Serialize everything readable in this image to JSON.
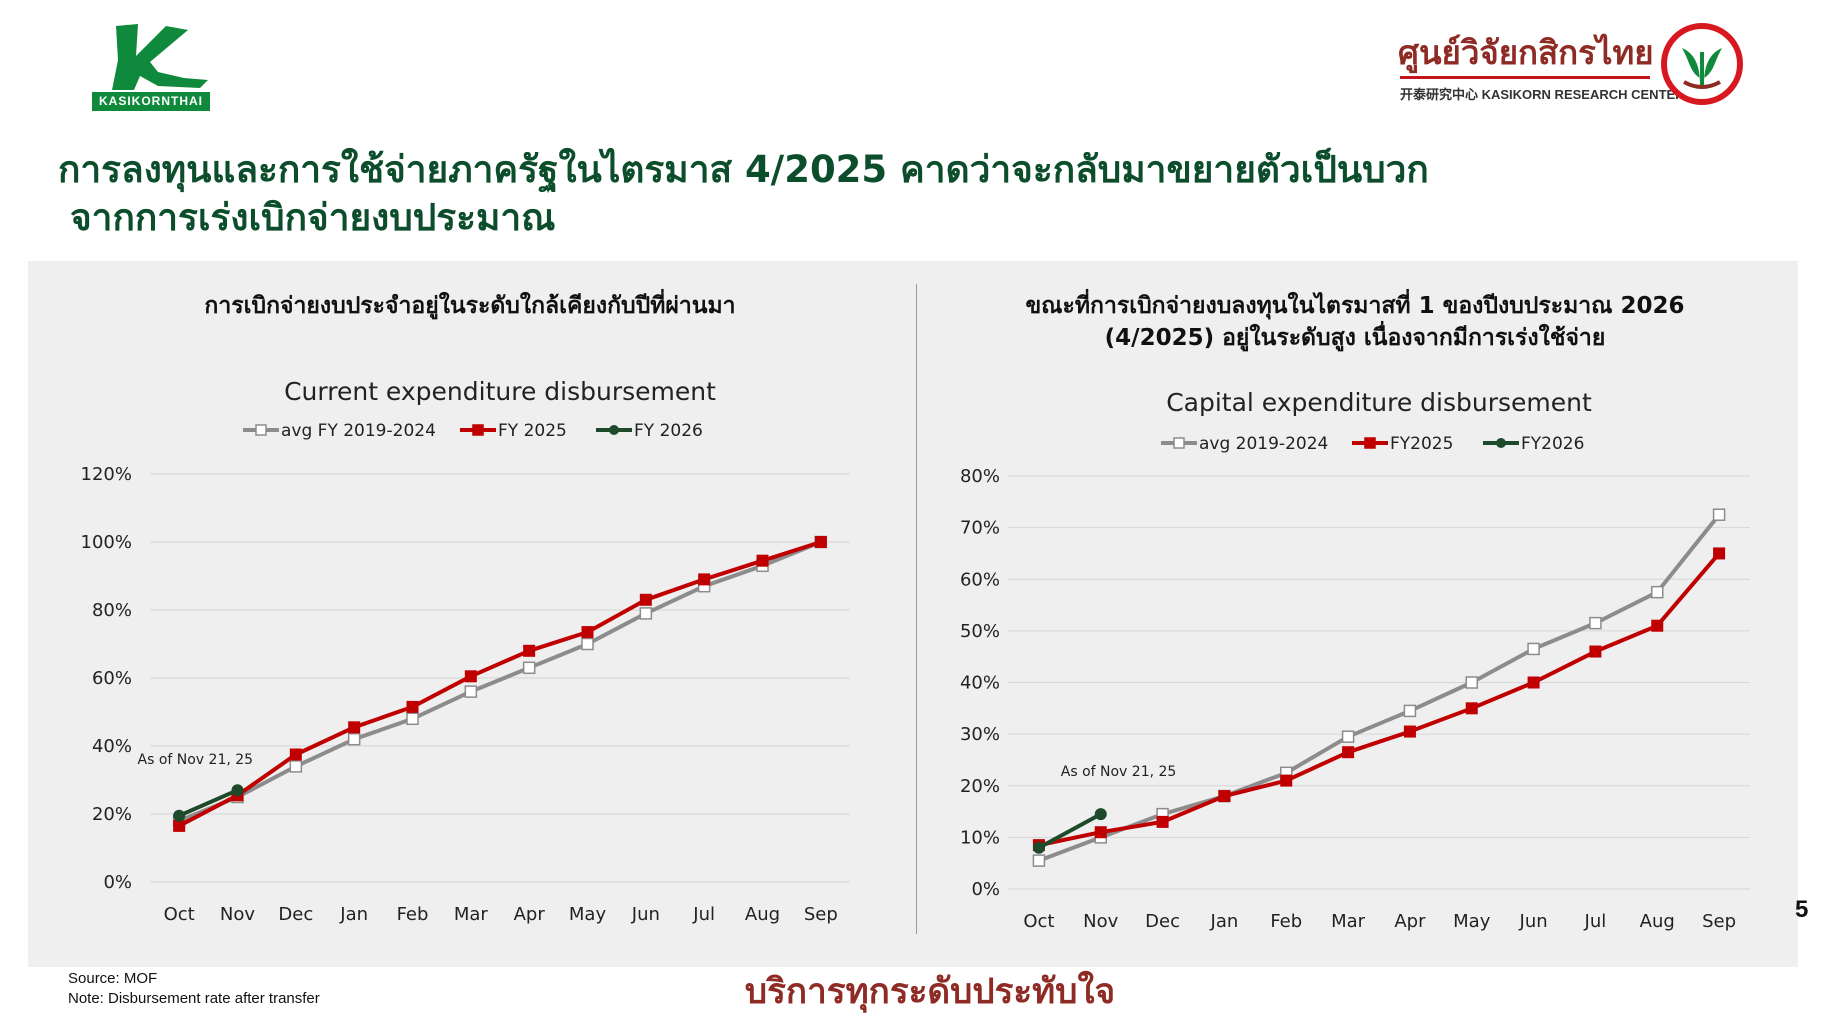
{
  "header": {
    "left_logo_text": "KASIKORNTHAI",
    "right_logo_th": "ศูนย์วิจัยกสิกรไทย",
    "right_logo_en": "开泰研究中心 KASIKORN RESEARCH CENTER"
  },
  "headline": {
    "line1": "การลงทุนและการใช้จ่ายภาครัฐในไตรมาส 4/2025 คาดว่าจะกลับมาขยายตัวเป็นบวก",
    "line2": "จากการเร่งเบิกจ่ายงบประมาณ"
  },
  "left_panel": {
    "subheading": "การเบิกจ่ายงบประจำอยู่ในระดับใกล้เคียงกับปีที่ผ่านมา"
  },
  "right_panel": {
    "subheading_line1": "ขณะที่การเบิกจ่ายงบลงทุนในไตรมาสที่ 1 ของปีงบประมาณ 2026",
    "subheading_line2": "(4/2025)  อยู่ในระดับสูง เนื่องจากมีการเร่งใช้จ่าย"
  },
  "chart_data": [
    {
      "type": "line",
      "title": "Current expenditure disbursement",
      "xlabel": "",
      "ylabel": "",
      "categories": [
        "Oct",
        "Nov",
        "Dec",
        "Jan",
        "Feb",
        "Mar",
        "Apr",
        "May",
        "Jun",
        "Jul",
        "Aug",
        "Sep"
      ],
      "ylim": [
        0,
        120
      ],
      "yticks": [
        0,
        20,
        40,
        60,
        80,
        100,
        120
      ],
      "ytick_labels": [
        "0%",
        "20%",
        "40%",
        "60%",
        "80%",
        "100%",
        "120%"
      ],
      "grid": true,
      "legend_position": "top",
      "annotation": "As of Nov 21, 25",
      "series": [
        {
          "name": "avg FY 2019-2024",
          "color": "#8c8c8c",
          "marker": "open-square",
          "values": [
            18,
            25,
            34,
            42,
            48,
            56,
            63,
            70,
            79,
            87,
            93,
            100
          ]
        },
        {
          "name": "FY 2025",
          "color": "#c00000",
          "marker": "filled-square",
          "values": [
            16.5,
            25.5,
            37.5,
            45.5,
            51.5,
            60.5,
            68,
            73.5,
            83,
            89,
            94.5,
            100
          ]
        },
        {
          "name": "FY 2026",
          "color": "#1d4a2a",
          "marker": "circle",
          "values": [
            19.5,
            27,
            null,
            null,
            null,
            null,
            null,
            null,
            null,
            null,
            null,
            null
          ]
        }
      ]
    },
    {
      "type": "line",
      "title": "Capital expenditure disbursement",
      "xlabel": "",
      "ylabel": "",
      "categories": [
        "Oct",
        "Nov",
        "Dec",
        "Jan",
        "Feb",
        "Mar",
        "Apr",
        "May",
        "Jun",
        "Jul",
        "Aug",
        "Sep"
      ],
      "ylim": [
        0,
        80
      ],
      "yticks": [
        0,
        10,
        20,
        30,
        40,
        50,
        60,
        70,
        80
      ],
      "ytick_labels": [
        "0%",
        "10%",
        "20%",
        "30%",
        "40%",
        "50%",
        "60%",
        "70%",
        "80%"
      ],
      "grid": true,
      "legend_position": "top",
      "annotation": "As of Nov 21, 25",
      "series": [
        {
          "name": "avg 2019-2024",
          "color": "#8c8c8c",
          "marker": "open-square",
          "values": [
            5.5,
            10,
            14.5,
            18,
            22.5,
            29.5,
            34.5,
            40,
            46.5,
            51.5,
            57.5,
            72.5
          ]
        },
        {
          "name": "FY2025",
          "color": "#c00000",
          "marker": "filled-square",
          "values": [
            8.5,
            11,
            13,
            18,
            21,
            26.5,
            30.5,
            35,
            40,
            46,
            51,
            65
          ]
        },
        {
          "name": "FY2026",
          "color": "#1d4a2a",
          "marker": "circle",
          "values": [
            8,
            14.5,
            null,
            null,
            null,
            null,
            null,
            null,
            null,
            null,
            null,
            null
          ]
        }
      ]
    }
  ],
  "footer": {
    "source": "Source: MOF",
    "note": "Note: Disbursement rate after transfer",
    "slogan": "บริการทุกระดับประทับใจ",
    "page_number": "5"
  },
  "colors": {
    "headline": "#0c4d2b",
    "brand_red": "#c00000",
    "brand_green": "#0f8a3c",
    "panel_bg": "#efefef"
  }
}
